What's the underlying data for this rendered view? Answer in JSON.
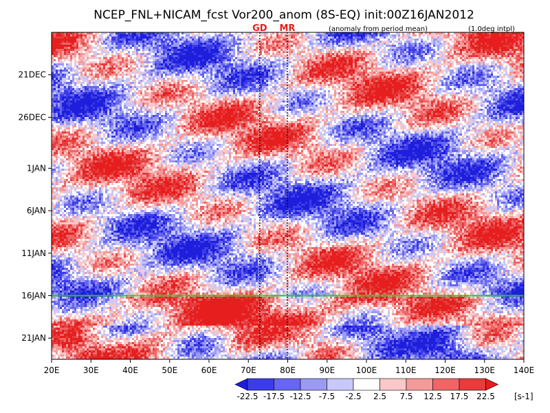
{
  "chart_data": {
    "type": "heatmap",
    "title": "NCEP_FNL+NICAM_fcst Vor200_anom (8S-EQ) init:00Z16JAN2012",
    "subtitle_left": "(anomaly from period mean)",
    "subtitle_right": "(1.0deg intpl)",
    "x_ticks": [
      "20E",
      "30E",
      "40E",
      "50E",
      "60E",
      "70E",
      "80E",
      "90E",
      "100E",
      "110E",
      "120E",
      "130E",
      "140E"
    ],
    "x_values": [
      20,
      30,
      40,
      50,
      60,
      70,
      80,
      90,
      100,
      110,
      120,
      130,
      140
    ],
    "xlim": [
      20,
      140
    ],
    "y_ticks": [
      "21DEC",
      "26DEC",
      "1JAN",
      "6JAN",
      "11JAN",
      "16JAN",
      "21JAN"
    ],
    "y_days": [
      5,
      10,
      16,
      21,
      26,
      31,
      36
    ],
    "ylim_days": [
      0,
      38.5
    ],
    "y_reference_date": "16DEC2011",
    "init_day": 31,
    "init_line_color": "#22cc22",
    "markers": [
      {
        "label": "GD",
        "lon": 72.9,
        "color": "#e0201f"
      },
      {
        "label": "MR",
        "lon": 79.9,
        "color": "#e0201f"
      }
    ],
    "colorbar": {
      "unit": "[s-1]",
      "tick_labels": [
        "-22.5",
        "-17.5",
        "-12.5",
        "-7.5",
        "-2.5",
        "2.5",
        "7.5",
        "12.5",
        "17.5",
        "22.5"
      ],
      "levels": [
        -22.5,
        -17.5,
        -12.5,
        -7.5,
        -2.5,
        2.5,
        7.5,
        12.5,
        17.5,
        22.5
      ],
      "colors": [
        "#1e1edc",
        "#3c3ce6",
        "#6666ee",
        "#9a9af4",
        "#c8c8fa",
        "#ffffff",
        "#fac8c8",
        "#f49a9a",
        "#ee6666",
        "#e63c3c",
        "#e61e1e"
      ]
    }
  }
}
